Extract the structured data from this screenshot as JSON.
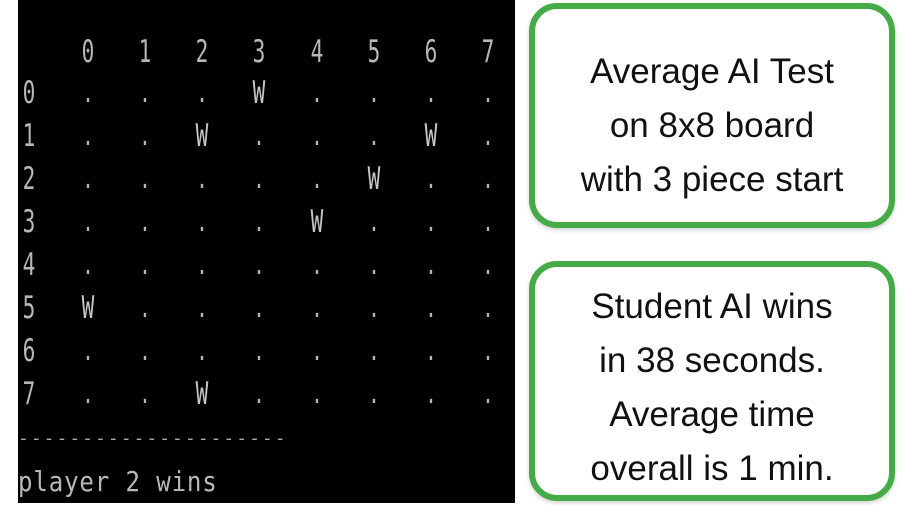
{
  "terminal": {
    "separator": "---------------------",
    "column_labels": [
      "0",
      "1",
      "2",
      "3",
      "4",
      "5",
      "6",
      "7"
    ],
    "rows": [
      {
        "label": "0",
        "cells": [
          ".",
          ".",
          ".",
          "W",
          ".",
          ".",
          ".",
          "."
        ]
      },
      {
        "label": "1",
        "cells": [
          ".",
          ".",
          "W",
          ".",
          ".",
          ".",
          "W",
          "."
        ]
      },
      {
        "label": "2",
        "cells": [
          ".",
          ".",
          ".",
          ".",
          ".",
          "W",
          ".",
          "."
        ]
      },
      {
        "label": "3",
        "cells": [
          ".",
          ".",
          ".",
          ".",
          "W",
          ".",
          ".",
          "."
        ]
      },
      {
        "label": "4",
        "cells": [
          ".",
          ".",
          ".",
          ".",
          ".",
          ".",
          ".",
          "."
        ]
      },
      {
        "label": "5",
        "cells": [
          "W",
          ".",
          ".",
          ".",
          ".",
          ".",
          ".",
          "."
        ]
      },
      {
        "label": "6",
        "cells": [
          ".",
          ".",
          ".",
          ".",
          ".",
          ".",
          ".",
          "."
        ]
      },
      {
        "label": "7",
        "cells": [
          ".",
          ".",
          "W",
          ".",
          ".",
          ".",
          ".",
          "."
        ]
      }
    ],
    "status": "player 2 wins"
  },
  "cards": {
    "test_info": {
      "lines": [
        "Average AI Test",
        "on 8x8 board",
        "with 3 piece start"
      ]
    },
    "result_info": {
      "lines": [
        "Student AI wins",
        "in 38 seconds.",
        "Average time",
        "overall is 1 min."
      ]
    }
  },
  "colors": {
    "terminal_background": "#000000",
    "terminal_text": "#b8b8b8",
    "card_border": "#44ab47",
    "card_text": "#111111"
  }
}
